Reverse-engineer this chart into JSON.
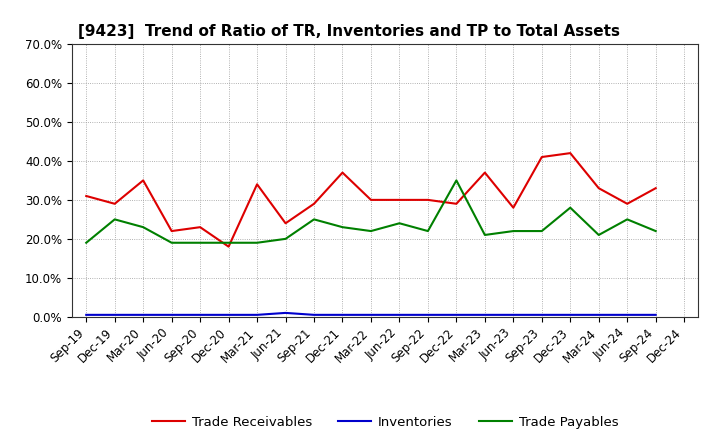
{
  "title": "[9423]  Trend of Ratio of TR, Inventories and TP to Total Assets",
  "x_labels": [
    "Sep-19",
    "Dec-19",
    "Mar-20",
    "Jun-20",
    "Sep-20",
    "Dec-20",
    "Mar-21",
    "Jun-21",
    "Sep-21",
    "Dec-21",
    "Mar-22",
    "Jun-22",
    "Sep-22",
    "Dec-22",
    "Mar-23",
    "Jun-23",
    "Sep-23",
    "Dec-23",
    "Mar-24",
    "Jun-24",
    "Sep-24",
    "Dec-24"
  ],
  "trade_receivables": [
    0.31,
    0.29,
    0.35,
    0.22,
    0.23,
    0.18,
    0.34,
    0.24,
    0.29,
    0.37,
    0.3,
    0.3,
    0.3,
    0.29,
    0.37,
    0.28,
    0.41,
    0.42,
    0.33,
    0.29,
    0.33,
    null
  ],
  "inventories": [
    0.005,
    0.005,
    0.005,
    0.005,
    0.005,
    0.005,
    0.005,
    0.01,
    0.005,
    0.005,
    0.005,
    0.005,
    0.005,
    0.005,
    0.005,
    0.005,
    0.005,
    0.005,
    0.005,
    0.005,
    0.005,
    null
  ],
  "trade_payables": [
    0.19,
    0.25,
    0.23,
    0.19,
    0.19,
    0.19,
    0.19,
    0.2,
    0.25,
    0.23,
    0.22,
    0.24,
    0.22,
    0.35,
    0.21,
    0.22,
    0.22,
    0.28,
    0.21,
    0.25,
    0.22,
    null
  ],
  "tr_color": "#dd0000",
  "inv_color": "#0000cc",
  "tp_color": "#008000",
  "ylim": [
    0.0,
    0.7
  ],
  "yticks": [
    0.0,
    0.1,
    0.2,
    0.3,
    0.4,
    0.5,
    0.6,
    0.7
  ],
  "bg_color": "#ffffff",
  "grid_color": "#999999",
  "legend_labels": [
    "Trade Receivables",
    "Inventories",
    "Trade Payables"
  ],
  "title_fontsize": 11,
  "tick_fontsize": 8.5,
  "legend_fontsize": 9.5
}
